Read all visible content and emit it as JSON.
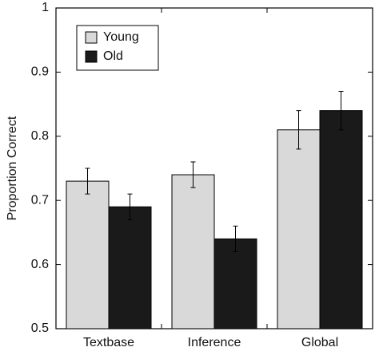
{
  "chart_data": {
    "type": "bar",
    "categories": [
      "Textbase",
      "Inference",
      "Global"
    ],
    "series": [
      {
        "name": "Young",
        "color": "#d9d9d9",
        "values": [
          0.73,
          0.74,
          0.81
        ],
        "error": [
          0.02,
          0.02,
          0.03
        ]
      },
      {
        "name": "Old",
        "color": "#1a1a1a",
        "values": [
          0.69,
          0.64,
          0.84
        ],
        "error": [
          0.02,
          0.02,
          0.03
        ]
      }
    ],
    "ylabel": "Proportion  Correct",
    "ylim": [
      0.5,
      1
    ],
    "yticks": [
      0.5,
      0.6,
      0.7,
      0.8,
      0.9,
      1
    ],
    "ytick_labels": [
      "0.5",
      "0.6",
      "0.7",
      "0.8",
      "0.9",
      "1"
    ],
    "grid": false,
    "legend_position": "top-left"
  }
}
